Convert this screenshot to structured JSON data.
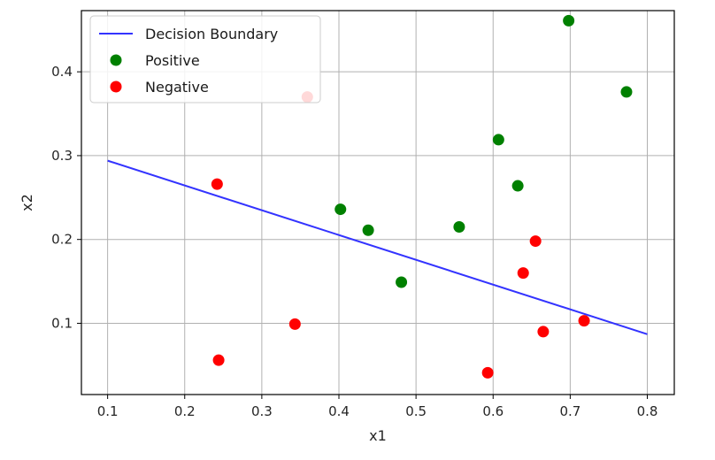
{
  "chart_data": {
    "type": "scatter",
    "title": "",
    "xlabel": "x1",
    "ylabel": "x2",
    "xlim": [
      0.066,
      0.835
    ],
    "ylim": [
      0.015,
      0.473
    ],
    "xticks": [
      0.1,
      0.2,
      0.3,
      0.4,
      0.5,
      0.6,
      0.7,
      0.8
    ],
    "xtick_labels": [
      "0.1",
      "0.2",
      "0.3",
      "0.4",
      "0.5",
      "0.6",
      "0.7",
      "0.8"
    ],
    "yticks": [
      0.1,
      0.2,
      0.3,
      0.4
    ],
    "ytick_labels": [
      "0.1",
      "0.2",
      "0.3",
      "0.4"
    ],
    "grid": true,
    "legend_position": "upper-left",
    "series": [
      {
        "name": "Decision Boundary",
        "kind": "line",
        "color": "#3333ff",
        "x": [
          0.1,
          0.8
        ],
        "y": [
          0.294,
          0.087
        ]
      },
      {
        "name": "Positive",
        "kind": "scatter",
        "color": "#008000",
        "x": [
          0.698,
          0.773,
          0.607,
          0.632,
          0.402,
          0.438,
          0.556,
          0.481
        ],
        "y": [
          0.461,
          0.376,
          0.319,
          0.264,
          0.236,
          0.211,
          0.215,
          0.149
        ]
      },
      {
        "name": "Negative",
        "kind": "scatter",
        "color": "#ff0000",
        "x": [
          0.359,
          0.242,
          0.655,
          0.639,
          0.718,
          0.665,
          0.343,
          0.244,
          0.593
        ],
        "y": [
          0.37,
          0.266,
          0.198,
          0.16,
          0.103,
          0.09,
          0.099,
          0.056,
          0.041
        ]
      }
    ]
  }
}
